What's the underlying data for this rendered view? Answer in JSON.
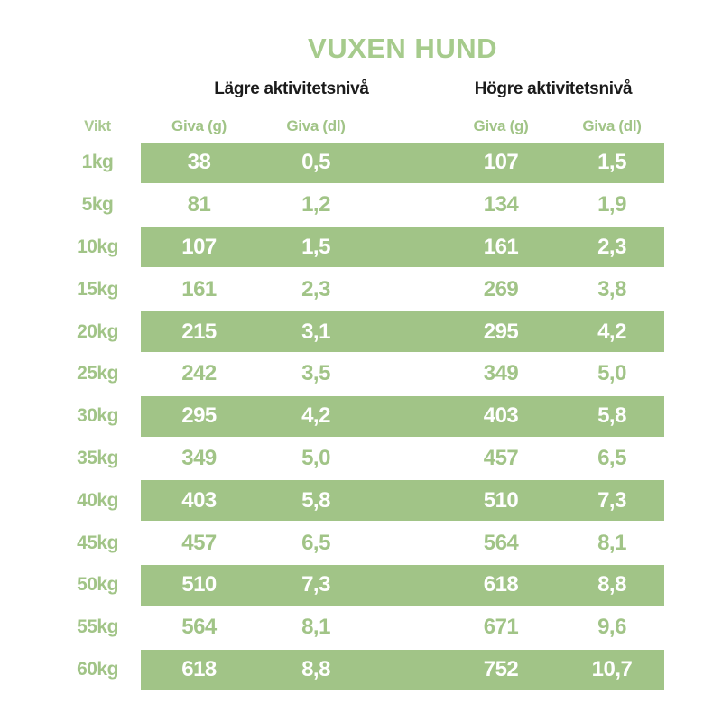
{
  "title": "VUXEN HUND",
  "group_headers": {
    "low": "Lägre aktivitetsnivå",
    "high": "Högre aktivitetsnivå"
  },
  "column_headers": {
    "weight": "Vikt",
    "low_g": "Giva (g)",
    "low_dl": "Giva (dl)",
    "high_g": "Giva (g)",
    "high_dl": "Giva (dl)"
  },
  "rows": [
    {
      "weight": "1kg",
      "low_g": "38",
      "low_dl": "0,5",
      "high_g": "107",
      "high_dl": "1,5"
    },
    {
      "weight": "5kg",
      "low_g": "81",
      "low_dl": "1,2",
      "high_g": "134",
      "high_dl": "1,9"
    },
    {
      "weight": "10kg",
      "low_g": "107",
      "low_dl": "1,5",
      "high_g": "161",
      "high_dl": "2,3"
    },
    {
      "weight": "15kg",
      "low_g": "161",
      "low_dl": "2,3",
      "high_g": "269",
      "high_dl": "3,8"
    },
    {
      "weight": "20kg",
      "low_g": "215",
      "low_dl": "3,1",
      "high_g": "295",
      "high_dl": "4,2"
    },
    {
      "weight": "25kg",
      "low_g": "242",
      "low_dl": "3,5",
      "high_g": "349",
      "high_dl": "5,0"
    },
    {
      "weight": "30kg",
      "low_g": "295",
      "low_dl": "4,2",
      "high_g": "403",
      "high_dl": "5,8"
    },
    {
      "weight": "35kg",
      "low_g": "349",
      "low_dl": "5,0",
      "high_g": "457",
      "high_dl": "6,5"
    },
    {
      "weight": "40kg",
      "low_g": "403",
      "low_dl": "5,8",
      "high_g": "510",
      "high_dl": "7,3"
    },
    {
      "weight": "45kg",
      "low_g": "457",
      "low_dl": "6,5",
      "high_g": "564",
      "high_dl": "8,1"
    },
    {
      "weight": "50kg",
      "low_g": "510",
      "low_dl": "7,3",
      "high_g": "618",
      "high_dl": "8,8"
    },
    {
      "weight": "55kg",
      "low_g": "564",
      "low_dl": "8,1",
      "high_g": "671",
      "high_dl": "9,6"
    },
    {
      "weight": "60kg",
      "low_g": "618",
      "low_dl": "8,8",
      "high_g": "752",
      "high_dl": "10,7"
    }
  ],
  "colors": {
    "green": "#a1c487",
    "title_green": "#a6cb8c",
    "band_text": "#ffffff",
    "heading_text": "#1b1b1b"
  }
}
